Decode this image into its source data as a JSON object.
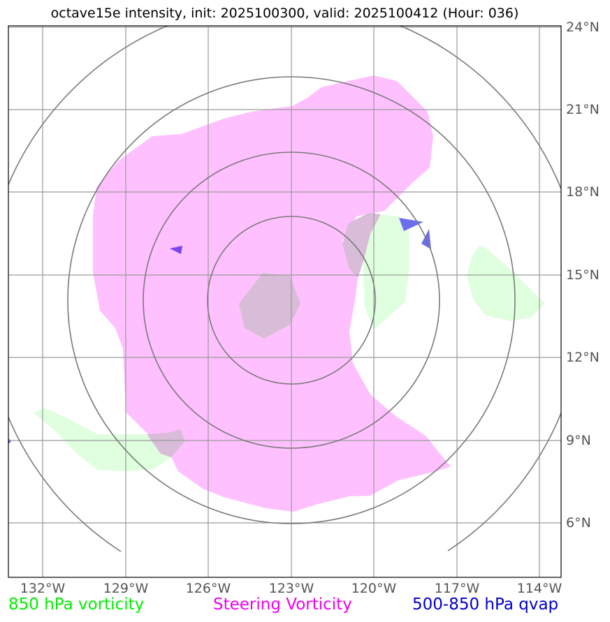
{
  "title": "octave15e intensity, init: 2025100300, valid: 2025100412 (Hour: 036)",
  "lat_labels": [
    "24°N",
    "21°N",
    "18°N",
    "15°N",
    "12°N",
    "9°N",
    "6°N"
  ],
  "lon_labels": [
    "132°W",
    "129°W",
    "126°W",
    "123°W",
    "120°W",
    "117°W",
    "114°W"
  ],
  "legend": {
    "vort850": {
      "label": "850 hPa vorticity",
      "color": "#00ee00"
    },
    "steering": {
      "label": "Steering Vorticity",
      "color": "#ee00ee"
    },
    "qvap": {
      "label": "500-850 hPa qvap",
      "color": "#0000cc"
    }
  },
  "colors": {
    "steering_fill": "#ffc0ff",
    "vort850_fill": "#dfffdf",
    "overlap_fill": "#d8bcd8",
    "qvap_fill": "#6d6df0",
    "grid": "#9a9a9a",
    "rings": "#7a7a7a"
  }
}
